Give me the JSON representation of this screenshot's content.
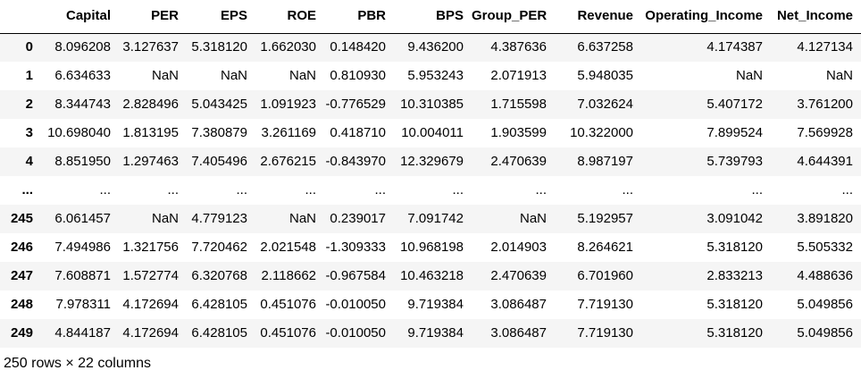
{
  "chart_data": {
    "type": "table",
    "index_label": "",
    "columns": [
      "Capital",
      "PER",
      "EPS",
      "ROE",
      "PBR",
      "BPS",
      "Group_PER",
      "Revenue",
      "Operating_Income",
      "Net_Income"
    ],
    "rows": [
      {
        "index": "0",
        "values": [
          "8.096208",
          "3.127637",
          "5.318120",
          "1.662030",
          "0.148420",
          "9.436200",
          "4.387636",
          "6.637258",
          "4.174387",
          "4.127134"
        ]
      },
      {
        "index": "1",
        "values": [
          "6.634633",
          "NaN",
          "NaN",
          "NaN",
          "0.810930",
          "5.953243",
          "2.071913",
          "5.948035",
          "NaN",
          "NaN"
        ]
      },
      {
        "index": "2",
        "values": [
          "8.344743",
          "2.828496",
          "5.043425",
          "1.091923",
          "-0.776529",
          "10.310385",
          "1.715598",
          "7.032624",
          "5.407172",
          "3.761200"
        ]
      },
      {
        "index": "3",
        "values": [
          "10.698040",
          "1.813195",
          "7.380879",
          "3.261169",
          "0.418710",
          "10.004011",
          "1.903599",
          "10.322000",
          "7.899524",
          "7.569928"
        ]
      },
      {
        "index": "4",
        "values": [
          "8.851950",
          "1.297463",
          "7.405496",
          "2.676215",
          "-0.843970",
          "12.329679",
          "2.470639",
          "8.987197",
          "5.739793",
          "4.644391"
        ]
      },
      {
        "index": "...",
        "values": [
          "...",
          "...",
          "...",
          "...",
          "...",
          "...",
          "...",
          "...",
          "...",
          "..."
        ]
      },
      {
        "index": "245",
        "values": [
          "6.061457",
          "NaN",
          "4.779123",
          "NaN",
          "0.239017",
          "7.091742",
          "NaN",
          "5.192957",
          "3.091042",
          "3.891820"
        ]
      },
      {
        "index": "246",
        "values": [
          "7.494986",
          "1.321756",
          "7.720462",
          "2.021548",
          "-1.309333",
          "10.968198",
          "2.014903",
          "8.264621",
          "5.318120",
          "5.505332"
        ]
      },
      {
        "index": "247",
        "values": [
          "7.608871",
          "1.572774",
          "6.320768",
          "2.118662",
          "-0.967584",
          "10.463218",
          "2.470639",
          "6.701960",
          "2.833213",
          "4.488636"
        ]
      },
      {
        "index": "248",
        "values": [
          "7.978311",
          "4.172694",
          "6.428105",
          "0.451076",
          "-0.010050",
          "9.719384",
          "3.086487",
          "7.719130",
          "5.318120",
          "5.049856"
        ]
      },
      {
        "index": "249",
        "values": [
          "4.844187",
          "4.172694",
          "6.428105",
          "0.451076",
          "-0.010050",
          "9.719384",
          "3.086487",
          "7.719130",
          "5.318120",
          "5.049856"
        ]
      }
    ],
    "footer": "250 rows × 22 columns"
  },
  "colors": {
    "background": "#ffffff",
    "stripe": "#f5f5f5",
    "header_border": "#000000",
    "text": "#000000"
  }
}
